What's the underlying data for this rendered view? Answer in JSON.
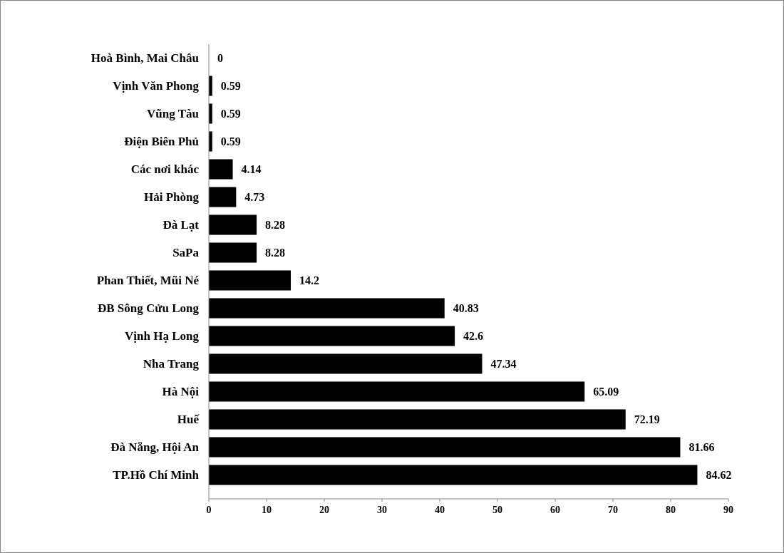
{
  "chart_data": {
    "type": "bar",
    "orientation": "horizontal",
    "categories": [
      "Hoà Bình, Mai Châu",
      "Vịnh Văn Phong",
      "Vũng Tàu",
      "Điện Biên Phủ",
      "Các nơi khác",
      "Hải Phòng",
      "Đà Lạt",
      "SaPa",
      "Phan Thiết, Mũi Né",
      "ĐB Sông Cửu Long",
      "Vịnh Hạ Long",
      "Nha Trang",
      "Hà Nội",
      "Huế",
      "Đà Nẵng, Hội An",
      "TP.Hồ Chí Minh"
    ],
    "values": [
      0,
      0.59,
      0.59,
      0.59,
      4.14,
      4.73,
      8.28,
      8.28,
      14.2,
      40.83,
      42.6,
      47.34,
      65.09,
      72.19,
      81.66,
      84.62
    ],
    "color": "#000000",
    "xlim": [
      0,
      90
    ],
    "xticks": [
      0,
      10,
      20,
      30,
      40,
      50,
      60,
      70,
      80,
      90
    ],
    "data_labels": true,
    "grid": false
  }
}
